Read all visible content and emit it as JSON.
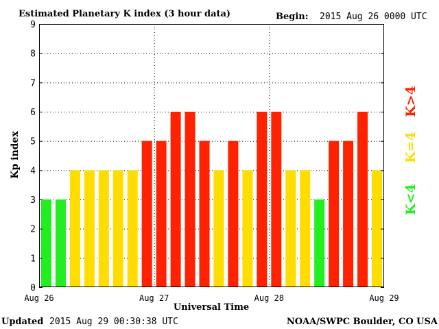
{
  "header": {
    "title": "Estimated Planetary K index (3 hour data)",
    "begin_label": "Begin:",
    "begin_value": "2015 Aug 26 0000 UTC"
  },
  "footer": {
    "updated_label": "Updated",
    "updated_value": "2015 Aug 29 00:30:38 UTC",
    "source": "NOAA/SWPC Boulder, CO USA"
  },
  "legend": {
    "low": "K<4",
    "equal": "K=4",
    "high": "K>4"
  },
  "colors": {
    "low": "#22ee22",
    "equal": "#ffdd00",
    "high": "#ff2200",
    "grid": "#000000",
    "background": "#ffffff"
  },
  "chart_data": {
    "type": "bar",
    "title": "Estimated Planetary K index (3 hour data)",
    "xlabel": "Universal Time",
    "ylabel": "Kp index",
    "ylim": [
      0,
      9
    ],
    "yticks": [
      0,
      1,
      2,
      3,
      4,
      5,
      6,
      7,
      8,
      9
    ],
    "xticks": [
      "Aug 26",
      "Aug 27",
      "Aug 28",
      "Aug 29"
    ],
    "interval_hours": 3,
    "grid": true,
    "values": [
      3,
      3,
      4,
      4,
      4,
      4,
      4,
      5,
      5,
      6,
      6,
      5,
      4,
      5,
      4,
      6,
      6,
      4,
      4,
      3,
      5,
      5,
      6,
      4
    ]
  }
}
